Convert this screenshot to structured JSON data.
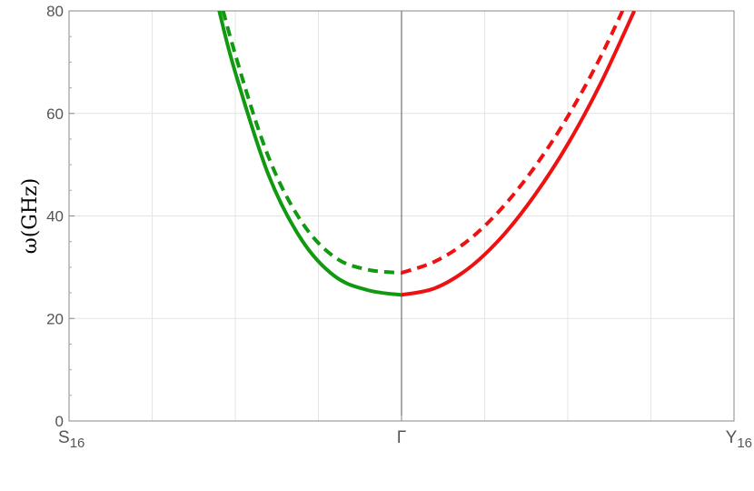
{
  "chart_data": {
    "type": "line",
    "ylabel": "ω(GHz)",
    "xlabel": "",
    "x_ticks": [
      {
        "label_main": "S",
        "label_sub": "16",
        "x": -1
      },
      {
        "label_main": "Γ",
        "label_sub": "",
        "x": 0
      },
      {
        "label_main": "Y",
        "label_sub": "16",
        "x": 1
      }
    ],
    "xlim": [
      -1,
      1
    ],
    "ylim": [
      0,
      80
    ],
    "y_ticks": [
      0,
      20,
      40,
      60,
      80
    ],
    "grid": true,
    "series": [
      {
        "color": "#119911",
        "style": "solid",
        "x": [
          -1,
          -0.9,
          -0.8,
          -0.7,
          -0.6,
          -0.55,
          -0.5,
          -0.4,
          -0.3,
          -0.2,
          -0.1,
          0
        ],
        "y": [
          null,
          null,
          null,
          null,
          95,
          80.5,
          68,
          48,
          35.3,
          28.2,
          25.5,
          24.6
        ]
      },
      {
        "color": "#119911",
        "style": "dashed",
        "x": [
          -1,
          -0.9,
          -0.8,
          -0.7,
          -0.6,
          -0.5,
          -0.4,
          -0.3,
          -0.2,
          -0.1,
          0
        ],
        "y": [
          null,
          null,
          null,
          null,
          95.5,
          71.5,
          51.5,
          38.8,
          31.9,
          29.5,
          28.9
        ]
      },
      {
        "color": "#ee1111",
        "style": "solid",
        "x": [
          0,
          0.1,
          0.2,
          0.3,
          0.4,
          0.5,
          0.6,
          0.7,
          0.8,
          0.9,
          1
        ],
        "y": [
          24.6,
          25.9,
          29.7,
          35.8,
          44.0,
          54.0,
          66.0,
          80.0,
          null,
          null,
          null
        ]
      },
      {
        "color": "#ee1111",
        "style": "dashed",
        "x": [
          0,
          0.1,
          0.2,
          0.3,
          0.4,
          0.5,
          0.6,
          0.7,
          0.8,
          0.9,
          1
        ],
        "y": [
          28.9,
          31.1,
          35.2,
          41.4,
          49.5,
          59.4,
          71.2,
          85.0,
          null,
          null,
          null
        ]
      }
    ]
  }
}
